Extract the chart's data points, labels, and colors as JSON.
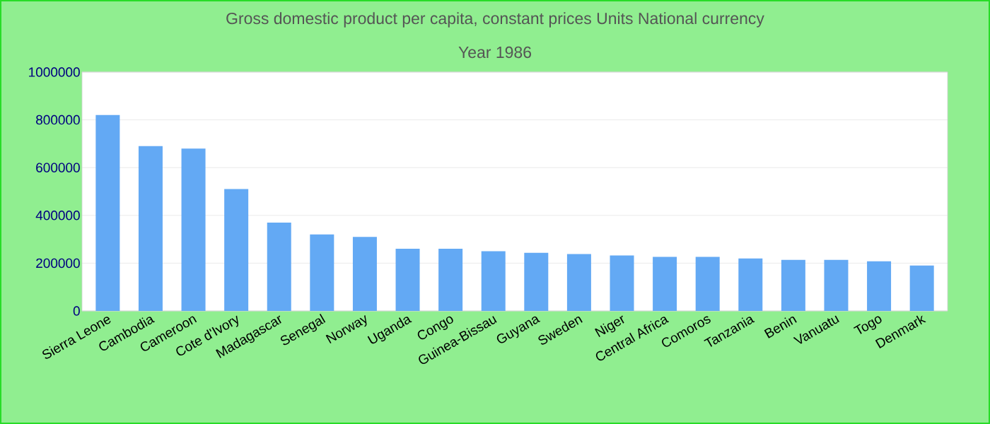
{
  "chart_data": {
    "type": "bar",
    "title": "Gross domestic product per capita, constant prices Units National currency",
    "subtitle": "Year 1986",
    "categories": [
      "Sierra Leone",
      "Cambodia",
      "Cameroon",
      "Cote d'Ivory",
      "Madagascar",
      "Senegal",
      "Norway",
      "Uganda",
      "Congo",
      "Guinea-Bissau",
      "Guyana",
      "Sweden",
      "Niger",
      "Central Africa",
      "Comoros",
      "Tanzania",
      "Benin",
      "Vanuatu",
      "Togo",
      "Denmark"
    ],
    "values": [
      820000,
      690000,
      680000,
      510000,
      370000,
      320000,
      310000,
      260000,
      260000,
      250000,
      243000,
      238000,
      232000,
      226000,
      226000,
      220000,
      214000,
      214000,
      208000,
      190000
    ],
    "color": "#63a9f4",
    "ylim": [
      0,
      1000000
    ],
    "yticks": [
      0,
      200000,
      400000,
      600000,
      800000,
      1000000
    ],
    "grid": "y"
  }
}
